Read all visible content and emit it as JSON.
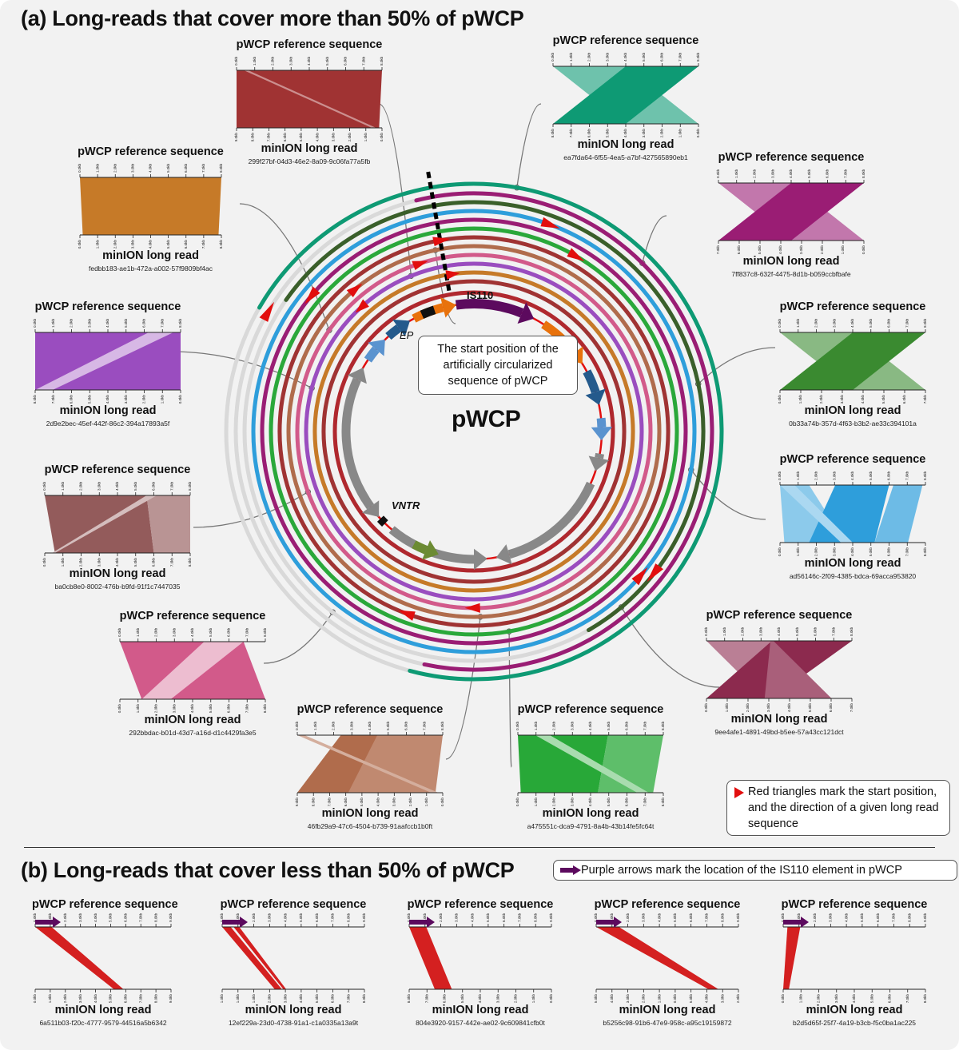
{
  "section_a": {
    "title": "(a) Long-reads that cover more than 50% of pWCP"
  },
  "section_b": {
    "title": "(b) Long-reads that cover less than 50% of pWCP"
  },
  "center": {
    "label": "pWCP",
    "is110_label": "IS110",
    "ep_label": "EP",
    "vntr_label": "VNTR",
    "start_callout": "The start position of the artificially circularized sequence of pWCP"
  },
  "legend": {
    "triangles": "Red triangles mark the start position, and the direction of a given long read sequence",
    "arrows": "Purple arrows mark the location of the IS110 element in pWCP"
  },
  "labels": {
    "ref": "pWCP reference sequence",
    "read": "minION long read"
  },
  "colors": {
    "is110": "#5c0a5e",
    "start_marker": "#e20e0e",
    "partial_alignment": "#d42020",
    "ring_background": "#d9d9d9",
    "gene_gray": "#888888",
    "gene_orange": "#e8720c",
    "gene_darkblue": "#245a8c",
    "gene_lightblue": "#5a93cf",
    "gene_olive": "#6c8b33"
  },
  "panels_a": [
    {
      "id": "299f27bf-04d3-46e2-8a09-9c06fa77a5fb",
      "color": "#a03333",
      "ref_ticks": [
        "0.0kb",
        "1.0kb",
        "2.0kb",
        "3.0kb",
        "4.0kb",
        "5.0kb",
        "6.0kb",
        "7.0kb",
        "8.0kb"
      ],
      "read_ticks": [
        "9.0kb",
        "8.0kb",
        "7.0kb",
        "6.0kb",
        "5.0kb",
        "4.0kb",
        "3.0kb",
        "2.0kb",
        "1.0kb",
        "0.0kb"
      ]
    },
    {
      "id": "ea7fda64-6f55-4ea5-a7bf-427565890eb1",
      "color": "#0e9a74",
      "ref_ticks": [
        "0.0kb",
        "1.0kb",
        "2.0kb",
        "3.0kb",
        "4.0kb",
        "5.0kb",
        "6.0kb",
        "7.0kb",
        "8.0kb"
      ],
      "read_ticks": [
        "8.0kb",
        "7.0kb",
        "6.0kb",
        "5.0kb",
        "4.0kb",
        "3.0kb",
        "2.0kb",
        "1.0kb",
        "0.0kb"
      ]
    },
    {
      "id": "fedbb183-ae1b-472a-a002-57f9809bf4ac",
      "color": "#c67a28",
      "ref_ticks": [
        "0.0kb",
        "1.0kb",
        "2.0kb",
        "3.0kb",
        "4.0kb",
        "5.0kb",
        "6.0kb",
        "7.0kb",
        "8.0kb"
      ],
      "read_ticks": [
        "0.0kb",
        "1.0kb",
        "2.0kb",
        "3.0kb",
        "4.0kb",
        "5.0kb",
        "6.0kb",
        "7.0kb",
        "8.0kb"
      ]
    },
    {
      "id": "7ff837c8-632f-4475-8d1b-b059ccbfbafe",
      "color": "#9a1d74",
      "ref_ticks": [
        "0.0kb",
        "1.0kb",
        "2.0kb",
        "3.0kb",
        "4.0kb",
        "5.0kb",
        "6.0kb",
        "7.0kb",
        "8.0kb"
      ],
      "read_ticks": [
        "7.0kb",
        "6.0kb",
        "5.0kb",
        "4.0kb",
        "3.0kb",
        "2.0kb",
        "1.0kb",
        "0.0kb"
      ]
    },
    {
      "id": "2d9e2bec-45ef-442f-86c2-394a17893a5f",
      "color": "#9a4dbf",
      "ref_ticks": [
        "0.0kb",
        "1.0kb",
        "2.0kb",
        "3.0kb",
        "4.0kb",
        "5.0kb",
        "6.0kb",
        "7.0kb",
        "8.0kb"
      ],
      "read_ticks": [
        "8.0kb",
        "7.0kb",
        "6.0kb",
        "5.0kb",
        "4.0kb",
        "3.0kb",
        "2.0kb",
        "1.0kb",
        "0.0kb"
      ]
    },
    {
      "id": "0b33a74b-357d-4f63-b3b2-ae33c394101a",
      "color": "#3a8a30",
      "ref_ticks": [
        "0.0kb",
        "1.0kb",
        "2.0kb",
        "3.0kb",
        "4.0kb",
        "5.0kb",
        "6.0kb",
        "7.0kb",
        "8.0kb"
      ],
      "read_ticks": [
        "0.0kb",
        "1.0kb",
        "2.0kb",
        "3.0kb",
        "4.0kb",
        "5.0kb",
        "6.0kb",
        "7.0kb"
      ]
    },
    {
      "id": "ba0cb8e0-8002-476b-b9fd-91f1c7447035",
      "color": "#935b5b",
      "ref_ticks": [
        "0.0kb",
        "1.0kb",
        "2.0kb",
        "3.0kb",
        "4.0kb",
        "5.0kb",
        "6.0kb",
        "7.0kb",
        "8.0kb"
      ],
      "read_ticks": [
        "0.0kb",
        "1.0kb",
        "2.0kb",
        "3.0kb",
        "4.0kb",
        "5.0kb",
        "6.0kb",
        "7.0kb",
        "8.0kb"
      ]
    },
    {
      "id": "ad56146c-2f09-4385-bdca-69acca953820",
      "color": "#2e9edb",
      "ref_ticks": [
        "0.0kb",
        "1.0kb",
        "2.0kb",
        "3.0kb",
        "4.0kb",
        "5.0kb",
        "6.0kb",
        "7.0kb",
        "8.0kb"
      ],
      "read_ticks": [
        "0.0kb",
        "1.0kb",
        "2.0kb",
        "3.0kb",
        "4.0kb",
        "5.0kb",
        "6.0kb",
        "7.0kb",
        "8.0kb"
      ]
    },
    {
      "id": "292bbdac-b01d-43d7-a16d-d1c4429fa3e5",
      "color": "#d25a8a",
      "ref_ticks": [
        "0.0kb",
        "1.0kb",
        "2.0kb",
        "3.0kb",
        "4.0kb",
        "5.0kb",
        "6.0kb",
        "7.0kb",
        "8.0kb"
      ],
      "read_ticks": [
        "0.0kb",
        "1.0kb",
        "2.0kb",
        "3.0kb",
        "4.0kb",
        "5.0kb",
        "6.0kb",
        "7.0kb",
        "8.0kb"
      ]
    },
    {
      "id": "9ee4afe1-4891-49bd-b5ee-57a43cc121dct",
      "color": "#8c2a4e",
      "ref_ticks": [
        "0.0kb",
        "1.0kb",
        "2.0kb",
        "3.0kb",
        "4.0kb",
        "5.0kb",
        "6.0kb",
        "7.0kb",
        "8.0kb"
      ],
      "read_ticks": [
        "0.0kb",
        "1.0kb",
        "2.0kb",
        "3.0kb",
        "4.0kb",
        "5.0kb",
        "6.0kb",
        "7.0kb"
      ]
    },
    {
      "id": "46fb29a9-47c6-4504-b739-91aafccb1b0ft",
      "color": "#b06c4c",
      "ref_ticks": [
        "0.0kb",
        "1.0kb",
        "2.0kb",
        "3.0kb",
        "4.0kb",
        "5.0kb",
        "6.0kb",
        "7.0kb",
        "8.0kb"
      ],
      "read_ticks": [
        "9.0kb",
        "8.0kb",
        "7.0kb",
        "6.0kb",
        "5.0kb",
        "4.0kb",
        "3.0kb",
        "2.0kb",
        "1.0kb",
        "0.0kb"
      ]
    },
    {
      "id": "a475551c-dca9-4791-8a4b-43b14fe5fc64t",
      "color": "#28a838",
      "ref_ticks": [
        "0.0kb",
        "1.0kb",
        "2.0kb",
        "3.0kb",
        "4.0kb",
        "5.0kb",
        "6.0kb",
        "7.0kb",
        "8.0kb"
      ],
      "read_ticks": [
        "0.0kb",
        "1.0kb",
        "2.0kb",
        "3.0kb",
        "4.0kb",
        "5.0kb",
        "6.0kb",
        "7.0kb",
        "8.0kb"
      ]
    }
  ],
  "panels_b": [
    {
      "id": "6a511b03-f20c-4777-9579-44516a5b6342",
      "ref_ticks": [
        "0.0kb",
        "1.0kb",
        "2.0kb",
        "3.0kb",
        "4.0kb",
        "5.0kb",
        "6.0kb",
        "7.0kb",
        "8.0kb",
        "9.0kb"
      ],
      "read_ticks": [
        "0.0kb",
        "1.0kb",
        "2.0kb",
        "3.0kb",
        "4.0kb",
        "5.0kb",
        "6.0kb",
        "7.0kb",
        "8.0kb",
        "9.0kb"
      ]
    },
    {
      "id": "12ef229a-23d0-4738-91a1-c1a0335a13a9t",
      "ref_ticks": [
        "0.0kb",
        "1.0kb",
        "2.0kb",
        "3.0kb",
        "4.0kb",
        "5.0kb",
        "6.0kb",
        "7.0kb",
        "8.0kb",
        "9.0kb"
      ],
      "read_ticks": [
        "1.0kb",
        "1.0kb",
        "1.0kb",
        "2.0kb",
        "3.0kb",
        "4.0kb",
        "5.0kb",
        "6.0kb",
        "7.0kb",
        "8.0kb"
      ]
    },
    {
      "id": "804e3920-9157-442e-ae02-9c609841cfb0t",
      "ref_ticks": [
        "0.0kb",
        "1.0kb",
        "2.0kb",
        "3.0kb",
        "4.0kb",
        "5.0kb",
        "6.0kb",
        "7.0kb",
        "8.0kb",
        "9.0kb"
      ],
      "read_ticks": [
        "8.0kb",
        "7.0kb",
        "6.0kb",
        "5.0kb",
        "4.0kb",
        "3.0kb",
        "2.0kb",
        "1.0kb",
        "0.0kb"
      ]
    },
    {
      "id": "b5256c98-91b6-47e9-958c-a95c19159872",
      "ref_ticks": [
        "0.0kb",
        "1.0kb",
        "2.0kb",
        "3.0kb",
        "4.0kb",
        "5.0kb",
        "6.0kb",
        "7.0kb",
        "8.0kb",
        "9.0kb"
      ],
      "read_ticks": [
        "5.0kb",
        "4.0kb",
        "3.0kb",
        "2.0kb",
        "1.0kb",
        "0.0kb",
        "5.0kb",
        "4.0kb",
        "3.0kb",
        "2.0kb"
      ]
    },
    {
      "id": "b2d5d65f-25f7-4a19-b3cb-f5c0ba1ac225",
      "ref_ticks": [
        "0.0kb",
        "1.0kb",
        "2.0kb",
        "3.0kb",
        "4.0kb",
        "5.0kb",
        "6.0kb",
        "7.0kb",
        "8.0kb",
        "9.0kb"
      ],
      "read_ticks": [
        "0.0kb",
        "1.0kb",
        "2.0kb",
        "3.0kb",
        "4.0kb",
        "5.0kb",
        "6.0kb",
        "7.0kb",
        "8.0kb"
      ]
    }
  ]
}
